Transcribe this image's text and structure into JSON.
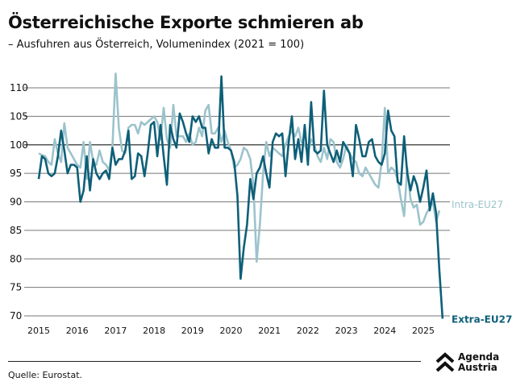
{
  "title": "Österreichische Exporte schmieren ab",
  "subtitle": "– Ausfuhren aus Österreich, Volumenindex (2021 = 100)",
  "source": "Quelle: Eurostat.",
  "logo": {
    "line1": "Agenda",
    "line2": "Austria"
  },
  "colors": {
    "extra": "#0e5f78",
    "intra": "#9cc3cc",
    "grid": "#555555"
  },
  "chart_data": {
    "type": "line",
    "title": "Österreichische Exporte schmieren ab",
    "xlabel": "",
    "ylabel": "Volumenindex (2021 = 100)",
    "x_start": "2015-01",
    "frequency": "monthly",
    "ylim": [
      70,
      112
    ],
    "yticks": [
      70,
      75,
      80,
      85,
      90,
      95,
      100,
      105,
      110
    ],
    "xticks": [
      "2015",
      "2016",
      "2017",
      "2018",
      "2019",
      "2020",
      "2021",
      "2022",
      "2023",
      "2024",
      "2025"
    ],
    "grid": true,
    "legend": "inline-right",
    "series": [
      {
        "name": "Intra-EU27",
        "color": "#9cc3cc",
        "values": [
          98.5,
          98.2,
          98,
          97,
          96.5,
          101,
          98.5,
          97,
          103.8,
          99.5,
          98.5,
          97.5,
          96.5,
          96,
          100.5,
          94,
          100.5,
          97,
          96.5,
          99,
          97,
          96.5,
          95.5,
          99.5,
          112.5,
          103,
          99,
          98.5,
          103,
          103.5,
          103.5,
          102,
          104,
          103.5,
          104,
          104.5,
          105,
          104,
          101,
          106.5,
          101,
          99.5,
          107,
          101.5,
          101.5,
          101.5,
          100.5,
          102,
          100,
          100.5,
          103,
          101.5,
          106,
          107,
          102,
          102,
          103,
          100.5,
          102.5,
          100.5,
          99,
          96,
          96.5,
          97.5,
          99.5,
          99,
          97.5,
          93,
          79.5,
          86,
          95,
          100.5,
          98,
          99.5,
          99,
          98.5,
          98,
          100,
          101.5,
          102.5,
          101.5,
          103,
          100.5,
          100,
          98.5,
          101,
          100,
          98,
          97,
          99.5,
          97.5,
          101,
          100.5,
          97,
          96,
          97.5,
          100,
          98.5,
          97.5,
          97,
          95,
          94.5,
          96,
          95,
          94,
          93,
          92.5,
          97,
          106.5,
          95,
          96,
          95.5,
          94,
          90.5,
          87.5,
          96,
          90.5,
          89,
          89.5,
          86,
          86.5,
          88,
          89,
          90,
          86.5,
          88.5
        ]
      },
      {
        "name": "Extra-EU27",
        "color": "#0e5f78",
        "values": [
          94,
          98,
          97.5,
          95,
          94.5,
          95,
          98,
          102.5,
          99,
          95,
          96.5,
          96.5,
          96,
          90,
          92,
          98,
          92,
          97.5,
          95,
          94,
          95,
          95.5,
          94,
          99.5,
          96.5,
          97.5,
          97.5,
          99,
          102.5,
          94,
          94.5,
          98.5,
          98,
          94.5,
          98.5,
          103.5,
          104,
          98,
          103.5,
          98,
          93,
          103.5,
          101,
          99.5,
          105.5,
          104,
          102,
          100.5,
          105,
          104,
          105,
          103,
          103,
          98.5,
          101,
          99.5,
          99.5,
          112,
          99.5,
          99.5,
          99,
          97,
          91,
          76.5,
          82,
          86,
          94,
          90.5,
          95,
          96,
          98,
          95,
          92.5,
          100.5,
          102,
          101.5,
          102,
          94.5,
          100.5,
          105,
          97.5,
          101,
          97,
          103.5,
          96.5,
          107.5,
          99,
          98.5,
          99,
          109.5,
          100,
          98.5,
          97,
          99,
          97,
          100.5,
          99.5,
          98.5,
          94.5,
          103.5,
          101,
          98,
          98,
          100.5,
          101,
          98,
          97,
          96.5,
          98.5,
          106,
          102.5,
          101.5,
          93.5,
          93,
          101.5,
          95,
          92,
          94.5,
          93,
          90,
          92.5,
          95.5,
          88.5,
          91.5,
          88,
          78,
          69.5
        ]
      }
    ]
  }
}
